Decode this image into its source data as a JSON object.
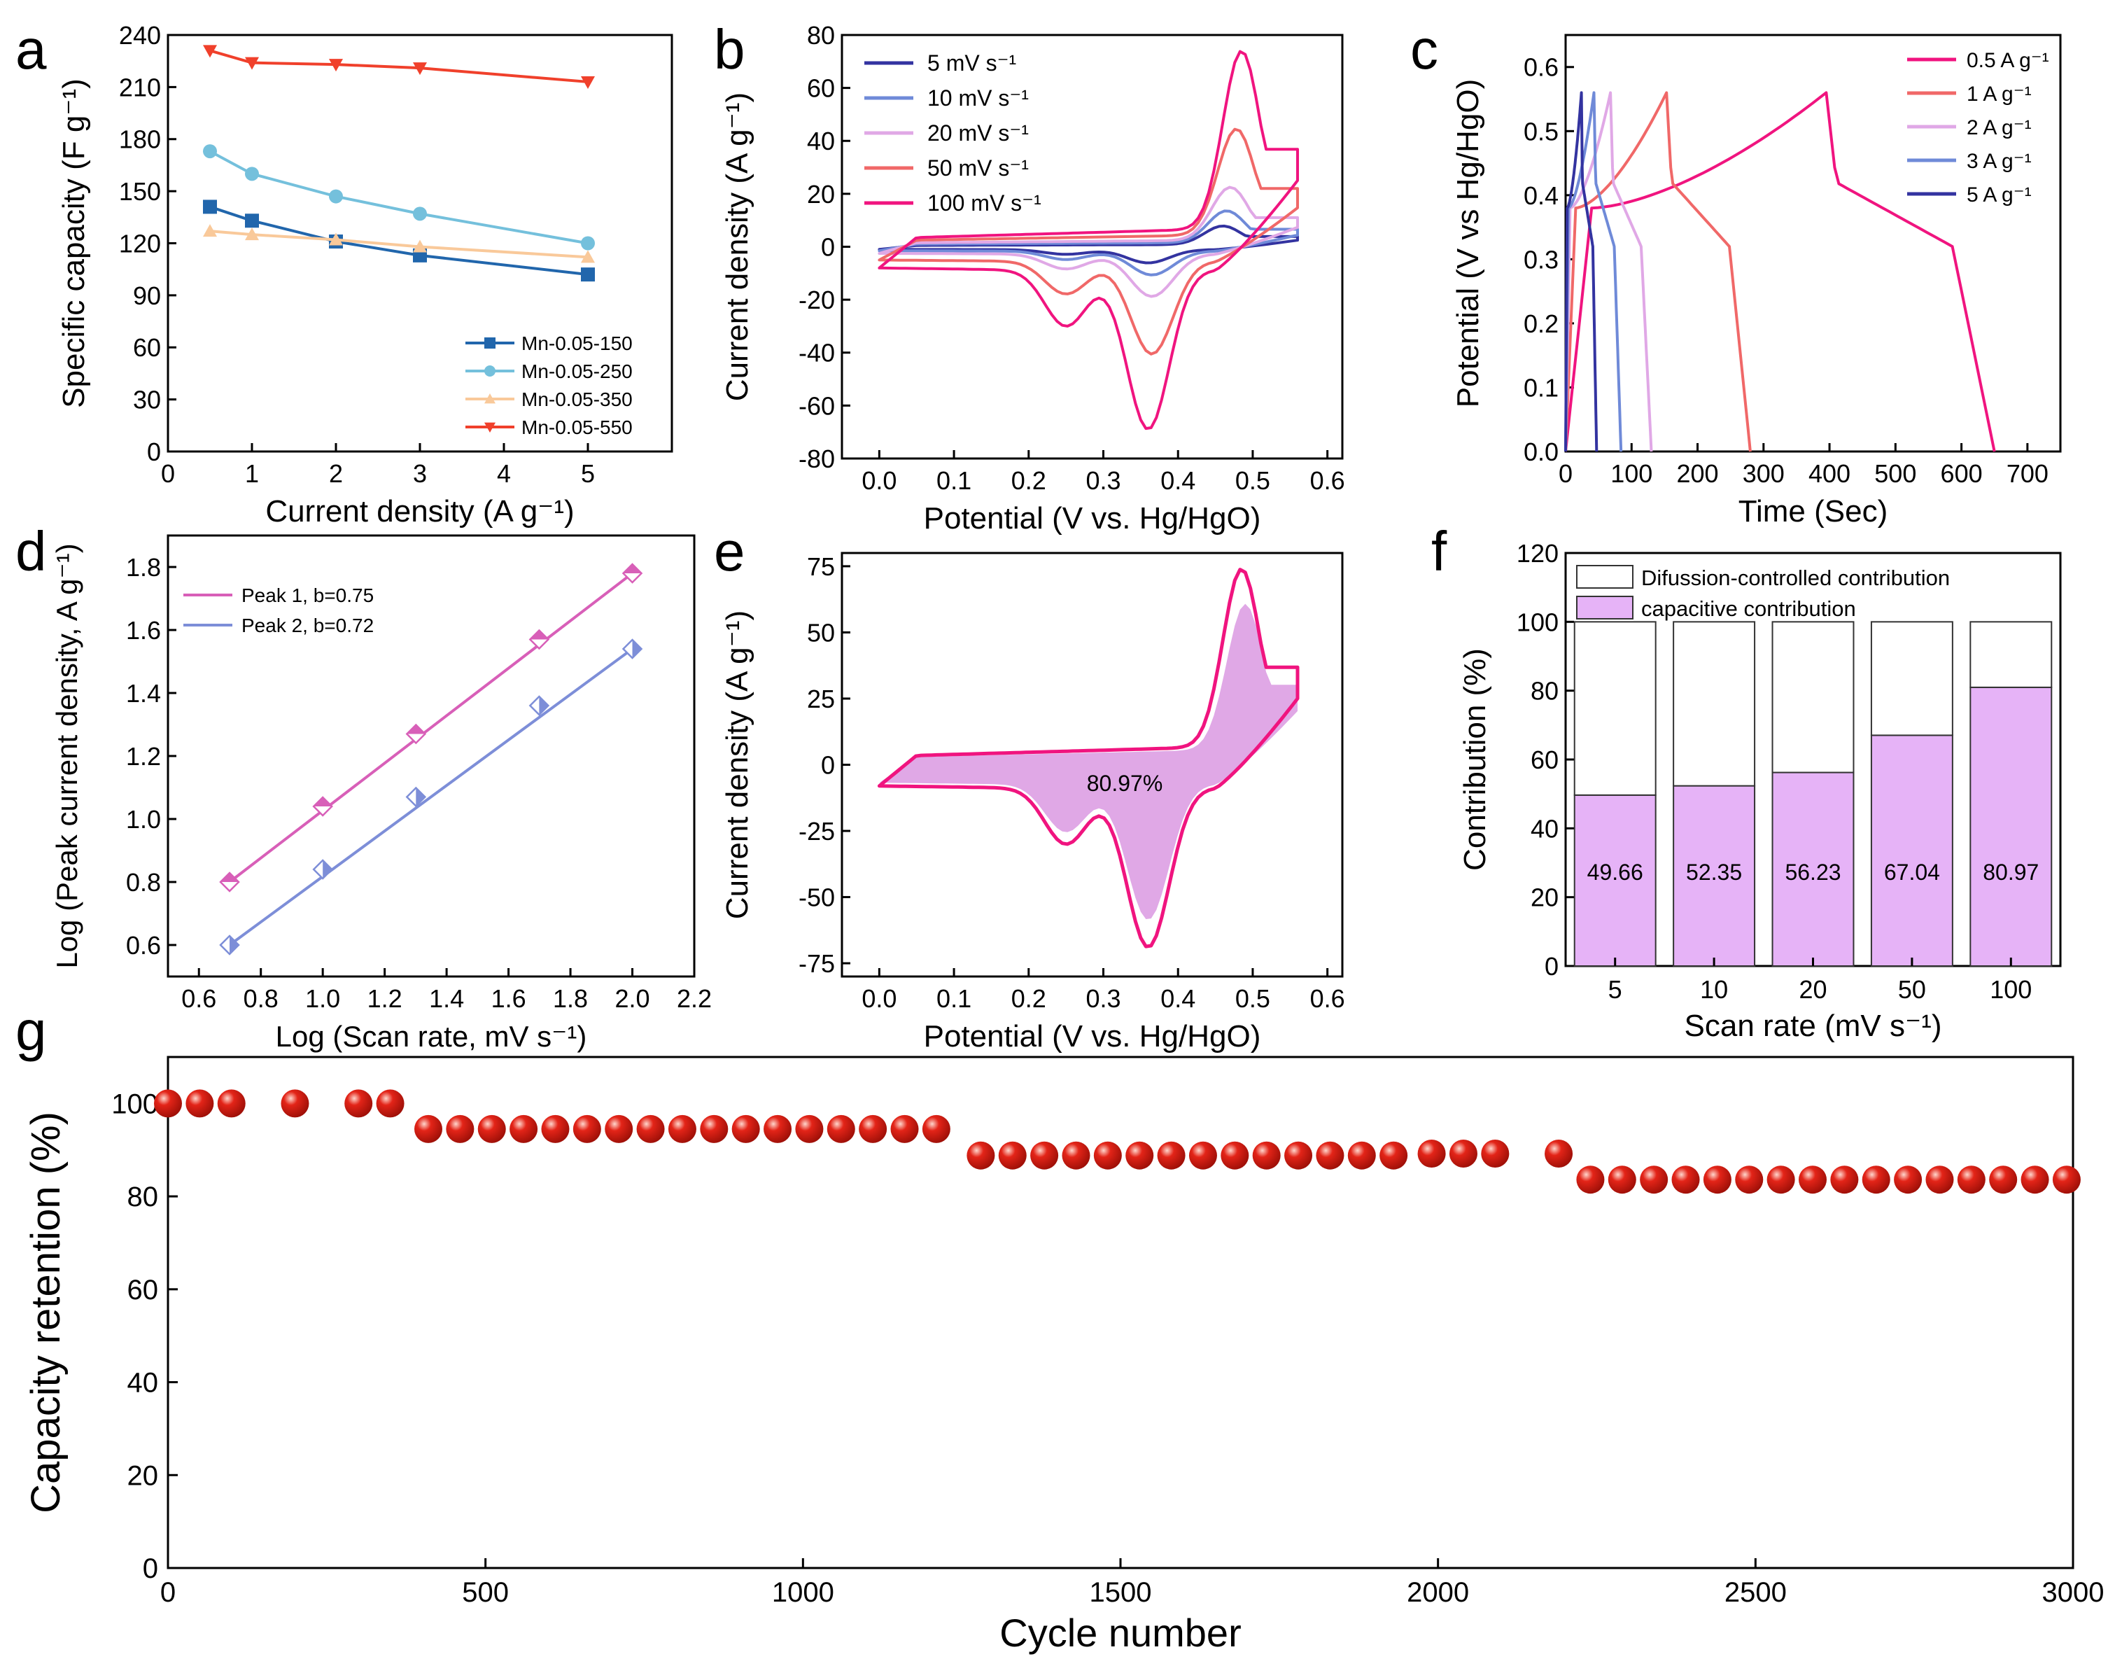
{
  "colors": {
    "a": [
      "#2166ac",
      "#74c0dc",
      "#f9c99a",
      "#f0402b"
    ],
    "b": [
      "#3333a0",
      "#6f8ad8",
      "#e0a8e6",
      "#f06868",
      "#f0147f"
    ],
    "c": [
      "#f0147f",
      "#f06868",
      "#e0a8e6",
      "#6f8ad8",
      "#3333a0"
    ],
    "d": [
      "#d85fb8",
      "#7d8ed8"
    ],
    "e_line": "#f0147f",
    "e_fill": "#e0a8e6",
    "f_fill": "#e6b3f7",
    "g_dot": "#e32418"
  },
  "chart_data": [
    {
      "panel": "a",
      "type": "line",
      "xlabel": "Current density (A g⁻¹)",
      "ylabel": "Specific capacity (F g⁻¹)",
      "xlim": [
        0,
        6
      ],
      "ylim": [
        0,
        240
      ],
      "xticks": [
        "0",
        "1",
        "2",
        "3",
        "4",
        "5"
      ],
      "yticks": [
        "0",
        "30",
        "60",
        "90",
        "120",
        "150",
        "180",
        "210",
        "240"
      ],
      "x": [
        0.5,
        1,
        2,
        3,
        5
      ],
      "legend_position": "bottom-right",
      "series": [
        {
          "name": "Mn-0.05-150",
          "values": [
            141,
            133,
            121,
            113,
            102
          ]
        },
        {
          "name": "Mn-0.05-250",
          "values": [
            173,
            160,
            147,
            137,
            120
          ]
        },
        {
          "name": "Mn-0.05-350",
          "values": [
            127,
            125,
            122,
            118,
            112
          ]
        },
        {
          "name": "Mn-0.05-550",
          "values": [
            231,
            224,
            223,
            221,
            213
          ]
        }
      ]
    },
    {
      "panel": "b",
      "type": "line",
      "xlabel": "Potential (V vs. Hg/HgO)",
      "ylabel": "Current density (A g⁻¹)",
      "xlim": [
        -0.05,
        0.62
      ],
      "ylim": [
        -80,
        80
      ],
      "xticks": [
        "0.0",
        "0.1",
        "0.2",
        "0.3",
        "0.4",
        "0.5",
        "0.6"
      ],
      "yticks": [
        "-80",
        "-60",
        "-40",
        "-20",
        "0",
        "20",
        "40",
        "60",
        "80"
      ],
      "legend_position": "top-left",
      "series": [
        {
          "name": "5 mV s⁻¹",
          "shape": [
            0.0,
            -1.0,
            0.5,
            1.0,
            0.2,
            0.46,
            7,
            -5,
            0.36
          ]
        },
        {
          "name": "10 mV s⁻¹",
          "shape": [
            0.0,
            -1.5,
            1.0,
            2.0,
            0.25,
            0.465,
            12,
            -9,
            0.365
          ]
        },
        {
          "name": "20 mV s⁻¹",
          "shape": [
            0.0,
            -2.5,
            1.5,
            3.0,
            0.3,
            0.47,
            20,
            -16,
            0.365
          ]
        },
        {
          "name": "50 mV s⁻¹",
          "shape": [
            0.0,
            -5.0,
            2.5,
            4.0,
            0.4,
            0.478,
            40,
            -35,
            0.365
          ]
        },
        {
          "name": "100 mV s⁻¹",
          "shape": [
            0.0,
            -8.0,
            3.5,
            5.0,
            0.5,
            0.485,
            67,
            -60,
            0.36
          ]
        }
      ]
    },
    {
      "panel": "c",
      "type": "line",
      "xlabel": "Time (Sec)",
      "ylabel": "Potential (V vs Hg/HgO)",
      "xlim": [
        0,
        750
      ],
      "ylim": [
        0,
        0.65
      ],
      "xticks": [
        "0",
        "100",
        "200",
        "300",
        "400",
        "500",
        "600",
        "700"
      ],
      "yticks": [
        "0.0",
        "0.1",
        "0.2",
        "0.3",
        "0.4",
        "0.5",
        "0.6"
      ],
      "legend_position": "top-right",
      "series": [
        {
          "name": "0.5 A g⁻¹",
          "t_charge": 395,
          "t_end": 650
        },
        {
          "name": "1 A g⁻¹",
          "t_charge": 153,
          "t_end": 280
        },
        {
          "name": "2 A g⁻¹",
          "t_charge": 68,
          "t_end": 130
        },
        {
          "name": "3 A g⁻¹",
          "t_charge": 43,
          "t_end": 84
        },
        {
          "name": "5 A g⁻¹",
          "t_charge": 24,
          "t_end": 47
        }
      ]
    },
    {
      "panel": "d",
      "type": "scatter",
      "xlabel": "Log (Scan rate, mV s⁻¹)",
      "ylabel": "Log (Peak current density, A g⁻¹)",
      "xlim": [
        0.5,
        2.2
      ],
      "ylim": [
        0.5,
        1.9
      ],
      "xticks": [
        "0.6",
        "0.8",
        "1.0",
        "1.2",
        "1.4",
        "1.6",
        "1.8",
        "2.0",
        "2.2"
      ],
      "yticks": [
        "0.6",
        "0.8",
        "1.0",
        "1.2",
        "1.4",
        "1.6",
        "1.8"
      ],
      "x": [
        0.699,
        1.0,
        1.301,
        1.699,
        2.0
      ],
      "legend_position": "top-left",
      "series": [
        {
          "name": "Peak 1, b=0.75",
          "values": [
            0.8,
            1.04,
            1.27,
            1.57,
            1.78
          ]
        },
        {
          "name": "Peak 2, b=0.72",
          "values": [
            0.6,
            0.84,
            1.07,
            1.36,
            1.54
          ]
        }
      ]
    },
    {
      "panel": "e",
      "type": "area",
      "xlabel": "Potential (V vs. Hg/HgO)",
      "ylabel": "Current density (A g⁻¹)",
      "xlim": [
        -0.05,
        0.62
      ],
      "ylim": [
        -80,
        80
      ],
      "xticks": [
        "0.0",
        "0.1",
        "0.2",
        "0.3",
        "0.4",
        "0.5",
        "0.6"
      ],
      "yticks": [
        "-75",
        "-50",
        "-25",
        "0",
        "25",
        "50",
        "75"
      ],
      "annotation": "80.97%",
      "shape": [
        0.0,
        -8.0,
        3.5,
        5.0,
        0.5,
        0.485,
        67,
        -60,
        0.36
      ]
    },
    {
      "panel": "f",
      "type": "bar",
      "xlabel": "Scan rate (mV s⁻¹)",
      "ylabel": "Contribution (%)",
      "ylim": [
        0,
        120
      ],
      "categories": [
        "5",
        "10",
        "20",
        "50",
        "100"
      ],
      "yticks": [
        "0",
        "20",
        "40",
        "60",
        "80",
        "100",
        "120"
      ],
      "legend_position": "top",
      "series": [
        {
          "name": "Difussion-controlled contribution",
          "values": [
            50.34,
            47.65,
            43.77,
            32.96,
            19.03
          ]
        },
        {
          "name": "capacitive contribution",
          "values": [
            49.66,
            52.35,
            56.23,
            67.04,
            80.97
          ]
        }
      ],
      "data_labels": [
        "49.66",
        "52.35",
        "56.23",
        "67.04",
        "80.97"
      ]
    },
    {
      "panel": "g",
      "type": "scatter",
      "xlabel": "Cycle number",
      "ylabel": "Capacity retention (%)",
      "xlim": [
        0,
        3000
      ],
      "ylim": [
        0,
        110
      ],
      "xticks": [
        "0",
        "500",
        "1000",
        "1500",
        "2000",
        "2500",
        "3000"
      ],
      "yticks": [
        "0",
        "20",
        "40",
        "60",
        "80",
        "100"
      ],
      "x": [
        0,
        50,
        100,
        200,
        300,
        350,
        410,
        460,
        510,
        560,
        610,
        660,
        710,
        760,
        810,
        860,
        910,
        960,
        1010,
        1060,
        1110,
        1160,
        1210,
        1280,
        1330,
        1380,
        1430,
        1480,
        1530,
        1580,
        1630,
        1680,
        1730,
        1780,
        1830,
        1880,
        1930,
        1990,
        2040,
        2090,
        2190,
        2240,
        2290,
        2340,
        2390,
        2440,
        2490,
        2540,
        2590,
        2640,
        2690,
        2740,
        2790,
        2840,
        2890,
        2940,
        2990
      ],
      "values": [
        100,
        100,
        100,
        100,
        100,
        100,
        94.5,
        94.5,
        94.5,
        94.5,
        94.5,
        94.5,
        94.5,
        94.5,
        94.5,
        94.5,
        94.5,
        94.5,
        94.5,
        94.5,
        94.5,
        94.5,
        94.5,
        88.8,
        88.8,
        88.8,
        88.8,
        88.8,
        88.8,
        88.8,
        88.8,
        88.8,
        88.8,
        88.8,
        88.8,
        88.8,
        88.8,
        89.2,
        89.2,
        89.2,
        89.2,
        83.6,
        83.6,
        83.6,
        83.6,
        83.6,
        83.6,
        83.6,
        83.6,
        83.6,
        83.6,
        83.6,
        83.6,
        83.6,
        83.6,
        83.6,
        83.6
      ]
    }
  ],
  "panel_letters": [
    "a",
    "b",
    "c",
    "d",
    "e",
    "f",
    "g"
  ]
}
